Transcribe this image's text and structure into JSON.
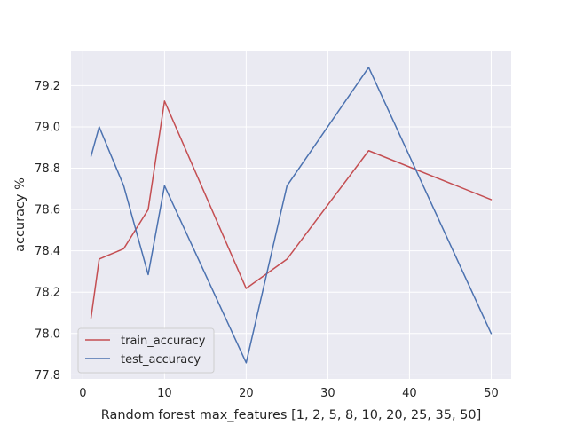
{
  "chart_data": {
    "type": "line",
    "title": "",
    "xlabel": "Random forest max_features [1, 2, 5, 8, 10, 20, 25, 35, 50]",
    "ylabel": "accuracy %",
    "x": [
      1,
      2,
      5,
      8,
      10,
      20,
      25,
      35,
      50
    ],
    "xlim": [
      -1.45,
      52.45
    ],
    "ylim": [
      77.78,
      79.365
    ],
    "xticks": [
      0,
      10,
      20,
      30,
      40,
      50
    ],
    "xtick_labels": [
      "0",
      "10",
      "20",
      "30",
      "40",
      "50"
    ],
    "yticks": [
      77.8,
      78.0,
      78.2,
      78.4,
      78.6,
      78.8,
      79.0,
      79.2
    ],
    "ytick_labels": [
      "77.8",
      "78.0",
      "78.2",
      "78.4",
      "78.6",
      "78.8",
      "79.0",
      "79.2"
    ],
    "grid": true,
    "legend_position": "lower-left",
    "series": [
      {
        "name": "train_accuracy",
        "color": "#c44e52",
        "values": [
          78.075,
          78.36,
          78.41,
          78.6,
          79.125,
          78.218,
          78.36,
          78.885,
          78.648
        ]
      },
      {
        "name": "test_accuracy",
        "color": "#4c72b0",
        "values": [
          78.858,
          79.0,
          78.715,
          78.285,
          78.715,
          77.858,
          78.715,
          79.288,
          78.0
        ]
      }
    ]
  },
  "colors": {
    "plot_background": "#eaeaf2",
    "grid": "#ffffff",
    "text": "#262626"
  }
}
